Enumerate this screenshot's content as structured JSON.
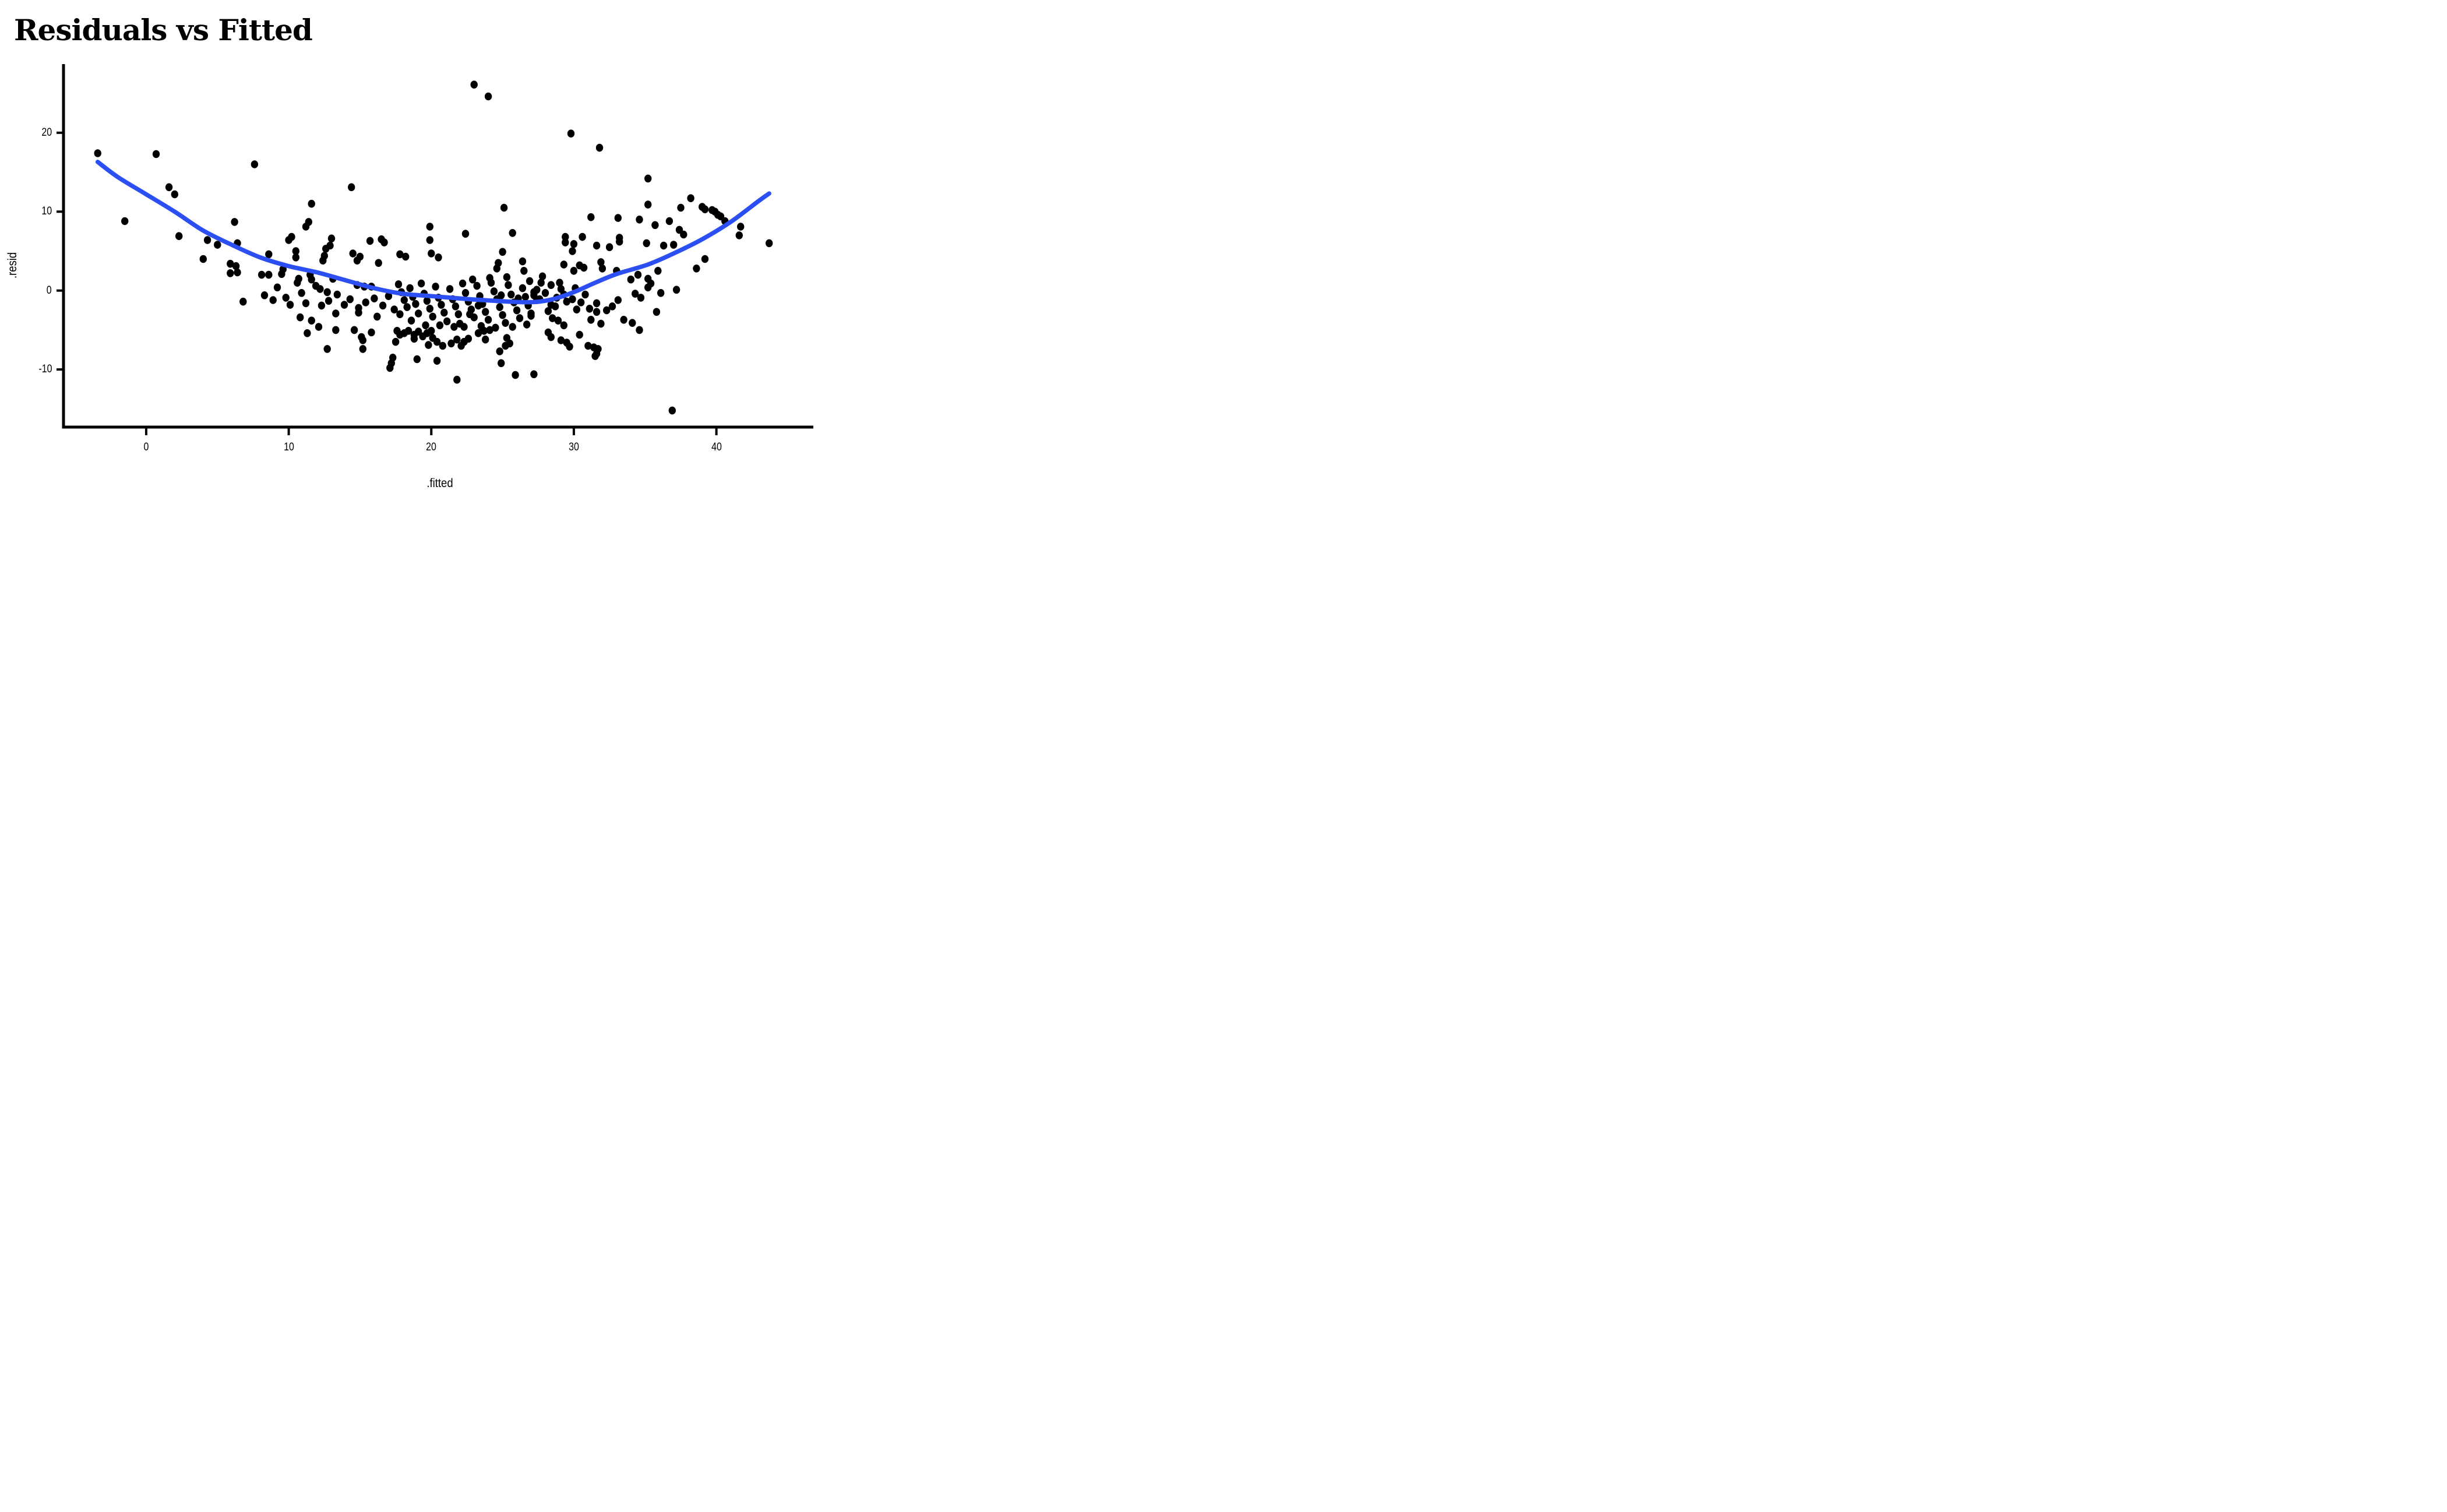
{
  "title": "Residuals vs Fitted",
  "chart_data": {
    "type": "scatter",
    "title": "Residuals vs Fitted",
    "xlabel": ".fitted",
    "ylabel": ".resid",
    "x_ticks": [
      0,
      10,
      20,
      30,
      40
    ],
    "y_ticks": [
      20,
      10,
      0,
      -10
    ],
    "xlim": [
      -5.8,
      46.8
    ],
    "ylim": [
      -17.3,
      28.7
    ],
    "grid": "off",
    "legend": "none",
    "point_color": "#000000",
    "axis_color": "#000000",
    "smooth_color": "#2b4ff2",
    "points": [
      [
        -3.4,
        17.4
      ],
      [
        0.7,
        17.3
      ],
      [
        7.6,
        16.0
      ],
      [
        1.6,
        13.1
      ],
      [
        2.0,
        12.2
      ],
      [
        -1.5,
        8.8
      ],
      [
        2.3,
        6.9
      ],
      [
        6.2,
        8.7
      ],
      [
        4.3,
        6.4
      ],
      [
        5.0,
        5.8
      ],
      [
        6.4,
        6.0
      ],
      [
        4.0,
        4.0
      ],
      [
        5.9,
        3.4
      ],
      [
        6.3,
        3.1
      ],
      [
        5.9,
        2.2
      ],
      [
        6.4,
        2.3
      ],
      [
        6.8,
        -1.4
      ],
      [
        14.4,
        13.1
      ],
      [
        11.6,
        11.0
      ],
      [
        11.4,
        8.7
      ],
      [
        11.2,
        8.1
      ],
      [
        10.2,
        6.8
      ],
      [
        10.0,
        6.4
      ],
      [
        10.5,
        5.0
      ],
      [
        10.5,
        4.2
      ],
      [
        13.0,
        6.6
      ],
      [
        12.9,
        5.7
      ],
      [
        12.6,
        5.3
      ],
      [
        12.5,
        4.4
      ],
      [
        12.4,
        3.8
      ],
      [
        14.5,
        4.7
      ],
      [
        15.0,
        4.3
      ],
      [
        14.8,
        3.8
      ],
      [
        15.7,
        6.3
      ],
      [
        16.5,
        6.5
      ],
      [
        16.7,
        6.1
      ],
      [
        19.9,
        8.1
      ],
      [
        19.9,
        6.4
      ],
      [
        17.8,
        4.6
      ],
      [
        18.2,
        4.3
      ],
      [
        20.0,
        4.7
      ],
      [
        20.5,
        4.2
      ],
      [
        8.6,
        4.6
      ],
      [
        8.1,
        2.0
      ],
      [
        8.6,
        2.0
      ],
      [
        9.6,
        2.7
      ],
      [
        9.5,
        2.1
      ],
      [
        10.7,
        1.5
      ],
      [
        10.6,
        1.0
      ],
      [
        11.5,
        2.0
      ],
      [
        11.6,
        1.4
      ],
      [
        13.1,
        1.5
      ],
      [
        12.2,
        0.2
      ],
      [
        12.7,
        -0.2
      ],
      [
        14.8,
        0.7
      ],
      [
        15.3,
        0.5
      ],
      [
        15.8,
        0.5
      ],
      [
        16.3,
        3.5
      ],
      [
        23.0,
        26.1
      ],
      [
        24.0,
        24.6
      ],
      [
        29.8,
        19.9
      ],
      [
        31.8,
        18.1
      ],
      [
        25.1,
        10.5
      ],
      [
        35.2,
        14.2
      ],
      [
        35.2,
        10.9
      ],
      [
        37.5,
        10.5
      ],
      [
        38.2,
        11.7
      ],
      [
        39.0,
        10.6
      ],
      [
        39.2,
        10.3
      ],
      [
        39.7,
        10.2
      ],
      [
        39.9,
        10.0
      ],
      [
        40.1,
        9.6
      ],
      [
        40.3,
        9.4
      ],
      [
        33.1,
        9.2
      ],
      [
        34.6,
        9.0
      ],
      [
        31.2,
        9.3
      ],
      [
        36.7,
        8.8
      ],
      [
        40.6,
        8.8
      ],
      [
        35.7,
        8.3
      ],
      [
        37.4,
        7.7
      ],
      [
        37.7,
        7.1
      ],
      [
        36.3,
        5.7
      ],
      [
        37.0,
        5.8
      ],
      [
        41.7,
        8.1
      ],
      [
        41.6,
        7.0
      ],
      [
        43.7,
        6.0
      ],
      [
        39.2,
        4.0
      ],
      [
        38.6,
        2.8
      ],
      [
        35.9,
        2.5
      ],
      [
        35.4,
        0.9
      ],
      [
        36.1,
        -0.3
      ],
      [
        37.2,
        0.1
      ],
      [
        35.8,
        -2.7
      ],
      [
        22.4,
        7.2
      ],
      [
        25.7,
        7.3
      ],
      [
        29.4,
        6.8
      ],
      [
        30.6,
        6.8
      ],
      [
        29.4,
        6.1
      ],
      [
        30.0,
        5.9
      ],
      [
        29.9,
        5.0
      ],
      [
        31.6,
        5.7
      ],
      [
        32.5,
        5.5
      ],
      [
        33.2,
        6.7
      ],
      [
        33.2,
        6.2
      ],
      [
        35.1,
        6.0
      ],
      [
        25.0,
        4.9
      ],
      [
        24.7,
        3.5
      ],
      [
        24.6,
        2.8
      ],
      [
        26.4,
        3.7
      ],
      [
        26.5,
        2.5
      ],
      [
        29.3,
        3.3
      ],
      [
        30.4,
        3.2
      ],
      [
        30.7,
        2.9
      ],
      [
        30.0,
        2.5
      ],
      [
        31.9,
        3.6
      ],
      [
        32.0,
        2.8
      ],
      [
        33.0,
        2.5
      ],
      [
        34.0,
        1.4
      ],
      [
        34.5,
        2.0
      ],
      [
        34.3,
        -0.4
      ],
      [
        34.7,
        -0.9
      ],
      [
        33.1,
        -1.2
      ],
      [
        32.7,
        -2.0
      ],
      [
        31.6,
        -1.6
      ],
      [
        31.1,
        -2.3
      ],
      [
        31.6,
        -2.7
      ],
      [
        32.3,
        -2.5
      ],
      [
        30.5,
        -1.5
      ],
      [
        29.9,
        -1.1
      ],
      [
        29.5,
        -1.4
      ],
      [
        27.8,
        1.8
      ],
      [
        27.7,
        1.0
      ],
      [
        28.4,
        0.7
      ],
      [
        29.0,
        1.0
      ],
      [
        27.4,
        0.1
      ],
      [
        27.2,
        -0.6
      ],
      [
        27.6,
        -1.1
      ],
      [
        29.1,
        0.2
      ],
      [
        29.3,
        -0.5
      ],
      [
        28.4,
        -1.8
      ],
      [
        28.7,
        -2.0
      ],
      [
        33.5,
        -3.7
      ],
      [
        34.1,
        -4.1
      ],
      [
        31.2,
        -3.7
      ],
      [
        31.9,
        -4.2
      ],
      [
        28.5,
        -3.5
      ],
      [
        28.9,
        -3.8
      ],
      [
        29.3,
        -4.4
      ],
      [
        27.0,
        -3.2
      ],
      [
        35.2,
        1.5
      ],
      [
        35.2,
        0.4
      ],
      [
        11.3,
        -5.4
      ],
      [
        13.3,
        -5.0
      ],
      [
        14.6,
        -5.0
      ],
      [
        12.7,
        -7.4
      ],
      [
        15.1,
        -5.9
      ],
      [
        15.2,
        -6.3
      ],
      [
        15.2,
        -7.4
      ],
      [
        15.8,
        -5.3
      ],
      [
        17.6,
        -5.1
      ],
      [
        17.8,
        -5.6
      ],
      [
        18.1,
        -5.4
      ],
      [
        18.4,
        -5.1
      ],
      [
        18.8,
        -5.6
      ],
      [
        19.1,
        -5.2
      ],
      [
        19.4,
        -5.8
      ],
      [
        19.7,
        -5.4
      ],
      [
        20.0,
        -5.1
      ],
      [
        20.1,
        -6.0
      ],
      [
        17.5,
        -6.5
      ],
      [
        18.8,
        -6.1
      ],
      [
        19.8,
        -6.9
      ],
      [
        20.4,
        -6.5
      ],
      [
        20.8,
        -7.0
      ],
      [
        21.4,
        -6.7
      ],
      [
        17.3,
        -8.5
      ],
      [
        17.2,
        -9.2
      ],
      [
        17.1,
        -9.8
      ],
      [
        19.0,
        -8.7
      ],
      [
        20.4,
        -8.9
      ],
      [
        10.8,
        -3.4
      ],
      [
        11.6,
        -3.8
      ],
      [
        12.1,
        -4.6
      ],
      [
        13.3,
        -2.9
      ],
      [
        14.9,
        -2.8
      ],
      [
        16.2,
        -3.3
      ],
      [
        17.4,
        -2.4
      ],
      [
        21.8,
        -6.2
      ],
      [
        22.3,
        -6.5
      ],
      [
        22.6,
        -6.1
      ],
      [
        22.1,
        -7.0
      ],
      [
        23.3,
        -5.4
      ],
      [
        23.7,
        -5.1
      ],
      [
        24.1,
        -5.0
      ],
      [
        23.8,
        -6.2
      ],
      [
        25.3,
        -6.0
      ],
      [
        25.5,
        -6.7
      ],
      [
        25.2,
        -7.0
      ],
      [
        24.8,
        -7.7
      ],
      [
        24.9,
        -9.2
      ],
      [
        25.9,
        -10.7
      ],
      [
        27.2,
        -10.6
      ],
      [
        21.8,
        -11.3
      ],
      [
        28.2,
        -5.3
      ],
      [
        28.4,
        -5.9
      ],
      [
        29.1,
        -6.3
      ],
      [
        29.5,
        -6.6
      ],
      [
        29.7,
        -7.1
      ],
      [
        30.4,
        -5.6
      ],
      [
        31.0,
        -7.0
      ],
      [
        31.4,
        -7.2
      ],
      [
        31.7,
        -7.4
      ],
      [
        31.6,
        -8.0
      ],
      [
        31.5,
        -8.3
      ],
      [
        34.6,
        -5.0
      ],
      [
        36.9,
        -15.2
      ],
      [
        8.3,
        -0.6
      ],
      [
        8.9,
        -1.2
      ],
      [
        9.2,
        0.4
      ],
      [
        9.8,
        -0.9
      ],
      [
        10.1,
        -1.8
      ],
      [
        10.9,
        -0.3
      ],
      [
        11.2,
        -1.6
      ],
      [
        11.9,
        0.6
      ],
      [
        12.3,
        -1.9
      ],
      [
        12.8,
        -1.3
      ],
      [
        13.4,
        -0.5
      ],
      [
        13.9,
        -1.8
      ],
      [
        14.3,
        -1.1
      ],
      [
        14.9,
        -2.2
      ],
      [
        15.4,
        -1.5
      ],
      [
        16.0,
        -1.0
      ],
      [
        16.6,
        -1.9
      ],
      [
        17.0,
        -0.7
      ],
      [
        17.7,
        0.8
      ],
      [
        17.9,
        -0.2
      ],
      [
        18.1,
        -1.2
      ],
      [
        18.3,
        -2.1
      ],
      [
        18.5,
        0.3
      ],
      [
        18.7,
        -0.8
      ],
      [
        18.9,
        -1.7
      ],
      [
        19.1,
        -2.9
      ],
      [
        19.3,
        0.9
      ],
      [
        19.5,
        -0.4
      ],
      [
        19.7,
        -1.3
      ],
      [
        19.9,
        -2.3
      ],
      [
        20.1,
        -3.3
      ],
      [
        20.3,
        0.5
      ],
      [
        20.5,
        -0.9
      ],
      [
        20.7,
        -1.8
      ],
      [
        20.9,
        -2.8
      ],
      [
        21.1,
        -3.9
      ],
      [
        21.3,
        0.2
      ],
      [
        21.5,
        -1.1
      ],
      [
        21.7,
        -2.0
      ],
      [
        21.9,
        -3.0
      ],
      [
        22.0,
        -4.2
      ],
      [
        18.6,
        -3.8
      ],
      [
        19.6,
        -4.4
      ],
      [
        20.6,
        -4.4
      ],
      [
        21.6,
        -4.6
      ],
      [
        17.8,
        -3.0
      ],
      [
        22.2,
        0.9
      ],
      [
        22.4,
        -0.3
      ],
      [
        22.6,
        -1.4
      ],
      [
        22.8,
        -2.4
      ],
      [
        23.0,
        -3.4
      ],
      [
        23.2,
        0.6
      ],
      [
        23.4,
        -0.7
      ],
      [
        23.6,
        -1.7
      ],
      [
        23.8,
        -2.7
      ],
      [
        24.0,
        -3.7
      ],
      [
        24.2,
        1.0
      ],
      [
        24.4,
        -0.1
      ],
      [
        24.6,
        -1.1
      ],
      [
        24.8,
        -2.1
      ],
      [
        25.0,
        -3.1
      ],
      [
        25.2,
        -4.1
      ],
      [
        25.4,
        0.7
      ],
      [
        25.6,
        -0.5
      ],
      [
        25.8,
        -1.5
      ],
      [
        26.0,
        -2.5
      ],
      [
        26.2,
        -3.5
      ],
      [
        26.4,
        0.3
      ],
      [
        26.6,
        -0.8
      ],
      [
        26.8,
        -1.9
      ],
      [
        27.0,
        -2.9
      ],
      [
        27.2,
        -0.2
      ],
      [
        27.4,
        -1.2
      ],
      [
        22.3,
        -4.6
      ],
      [
        23.5,
        -4.5
      ],
      [
        24.5,
        -4.7
      ],
      [
        26.7,
        -4.3
      ],
      [
        25.7,
        -4.6
      ],
      [
        22.9,
        1.4
      ],
      [
        24.1,
        1.6
      ],
      [
        25.3,
        1.7
      ],
      [
        26.9,
        1.2
      ],
      [
        23.3,
        -1.9
      ],
      [
        24.9,
        -0.6
      ],
      [
        26.1,
        -1.0
      ],
      [
        22.7,
        -3.0
      ],
      [
        28.0,
        -0.3
      ],
      [
        28.8,
        -0.9
      ],
      [
        30.1,
        0.3
      ],
      [
        30.8,
        -0.5
      ],
      [
        28.2,
        -2.6
      ],
      [
        30.2,
        -2.4
      ]
    ],
    "smooth_line": [
      [
        -3.4,
        16.3
      ],
      [
        -2.0,
        14.4
      ],
      [
        0.0,
        12.2
      ],
      [
        2.0,
        10.0
      ],
      [
        4.0,
        7.6
      ],
      [
        6.0,
        5.8
      ],
      [
        8.0,
        4.2
      ],
      [
        10.0,
        3.1
      ],
      [
        12.0,
        2.3
      ],
      [
        14.0,
        1.3
      ],
      [
        16.0,
        0.3
      ],
      [
        18.0,
        -0.4
      ],
      [
        20.0,
        -0.7
      ],
      [
        22.0,
        -1.0
      ],
      [
        24.0,
        -1.25
      ],
      [
        26.0,
        -1.45
      ],
      [
        27.3,
        -1.45
      ],
      [
        28.5,
        -1.1
      ],
      [
        30.0,
        -0.2
      ],
      [
        31.5,
        1.0
      ],
      [
        33.0,
        2.1
      ],
      [
        35.2,
        3.3
      ],
      [
        37.0,
        4.7
      ],
      [
        39.0,
        6.5
      ],
      [
        41.0,
        8.7
      ],
      [
        43.0,
        11.4
      ],
      [
        43.7,
        12.3
      ]
    ]
  }
}
